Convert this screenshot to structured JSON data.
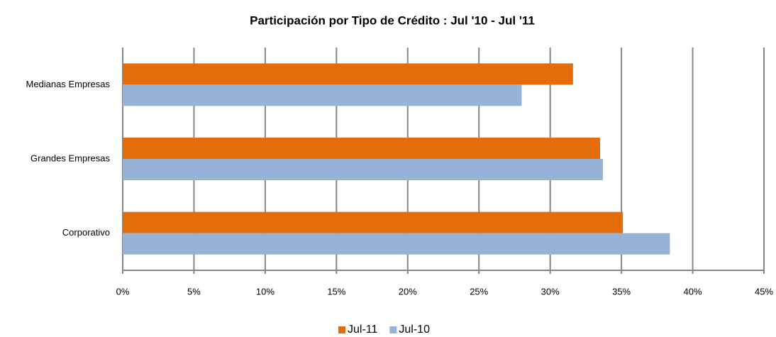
{
  "chart_data": {
    "type": "hbar",
    "title": "Participación por Tipo de Crédito : Jul '10 - Jul '11",
    "categories": [
      "Medianas Empresas",
      "Grandes Empresas",
      "Corporativo"
    ],
    "series": [
      {
        "name": "Jul-11",
        "color": "#e46c0a",
        "values": [
          31.6,
          33.5,
          35.1
        ]
      },
      {
        "name": "Jul-10",
        "color": "#95b3d7",
        "values": [
          28.0,
          33.7,
          38.4
        ]
      }
    ],
    "xlim": [
      0,
      45
    ],
    "xticks": [
      {
        "value": 0,
        "label": "0%"
      },
      {
        "value": 5,
        "label": "5%"
      },
      {
        "value": 10,
        "label": "10%"
      },
      {
        "value": 15,
        "label": "15%"
      },
      {
        "value": 20,
        "label": "20%"
      },
      {
        "value": 25,
        "label": "25%"
      },
      {
        "value": 30,
        "label": "30%"
      },
      {
        "value": 35,
        "label": "35%"
      },
      {
        "value": 40,
        "label": "40%"
      },
      {
        "value": 45,
        "label": "45%"
      }
    ],
    "grid": true,
    "legend": "bottom"
  }
}
